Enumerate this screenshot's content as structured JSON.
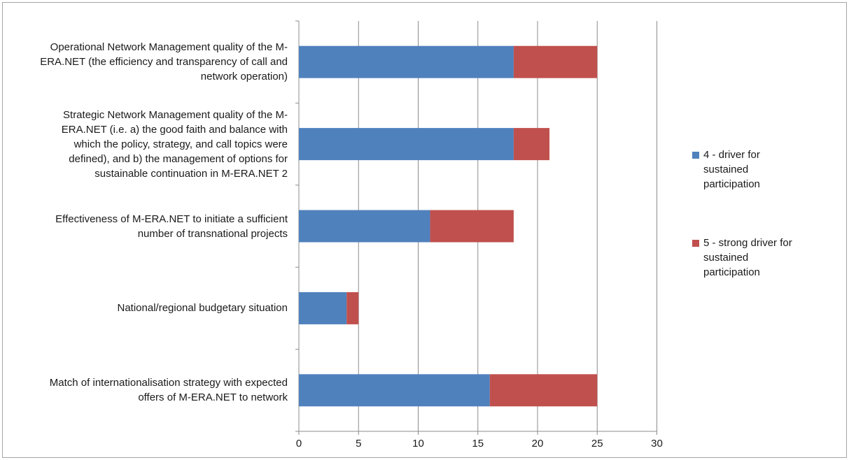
{
  "chart_data": {
    "type": "bar",
    "orientation": "horizontal",
    "stacked": true,
    "categories": [
      "Operational Network Management quality of the M-ERA.NET (the efficiency and transparency of call and network operation)",
      "Strategic Network Management quality of the M-ERA.NET (i.e. a) the good faith and balance with which the policy, strategy, and call topics were defined), and b) the management of options for sustainable continuation in M-ERA.NET 2",
      "Effectiveness of M-ERA.NET to initiate a sufficient number of transnational projects",
      "National/regional budgetary situation",
      "Match of internationalisation strategy with expected offers of M-ERA.NET to network"
    ],
    "category_lines": [
      [
        "Operational Network Management quality of the M-",
        "ERA.NET (the efficiency and transparency of call and",
        "network operation)"
      ],
      [
        "Strategic Network Management quality of the M-",
        "ERA.NET (i.e. a) the good faith and balance with",
        "which the policy, strategy, and call topics were",
        "defined), and b) the management of options for",
        "sustainable continuation in M-ERA.NET 2"
      ],
      [
        "Effectiveness of M-ERA.NET to initiate a sufficient",
        "number of transnational projects"
      ],
      [
        "National/regional budgetary situation"
      ],
      [
        "Match of internationalisation strategy with expected",
        "offers of M-ERA.NET to network"
      ]
    ],
    "series": [
      {
        "name": "4 - driver for sustained participation",
        "legend_lines": [
          "4 - driver for",
          "sustained",
          "participation"
        ],
        "color": "#4f81bd",
        "values": [
          18,
          18,
          11,
          4,
          16
        ]
      },
      {
        "name": "5 - strong driver for sustained participation",
        "legend_lines": [
          "5 - strong driver for",
          "sustained",
          "participation"
        ],
        "color": "#c0504d",
        "values": [
          7,
          3,
          7,
          1,
          9
        ]
      }
    ],
    "xticks": [
      "0",
      "5",
      "10",
      "15",
      "20",
      "25",
      "30"
    ],
    "xlim": [
      0,
      30
    ],
    "grid": true,
    "legend_position": "right",
    "title": "",
    "xlabel": "",
    "ylabel": ""
  }
}
